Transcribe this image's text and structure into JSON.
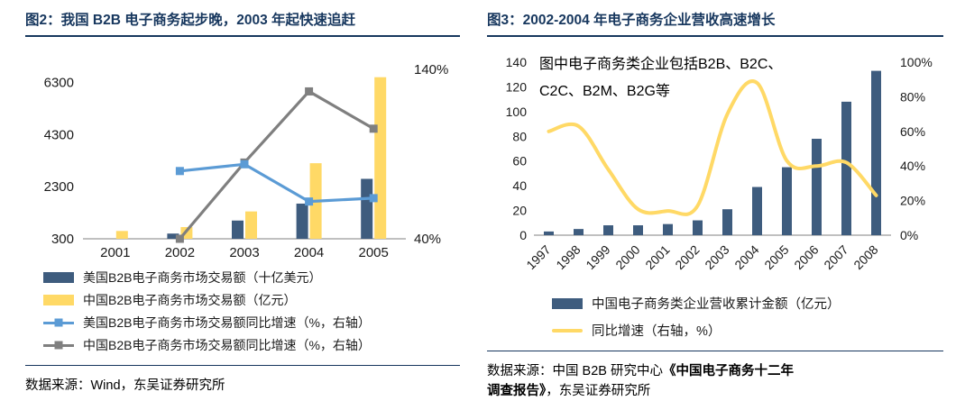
{
  "colors": {
    "title_navy": "#17375E",
    "bar_dark_blue": "#3E5C7E",
    "bar_yellow": "#FFD966",
    "line_blue": "#5B9BD5",
    "line_gray": "#7F7F7F",
    "line_yellow": "#FFD966",
    "axis_text": "#1a1a1a"
  },
  "fig2": {
    "title": "图2：我国 B2B 电子商务起步晚，2003 年起快速追赶",
    "source": "数据来源：Wind，东吴证券研究所"
  },
  "fig3": {
    "title": "图3：2002-2004 年电子商务企业营收高速增长",
    "annotation_line1": "图中电子商务类企业包括B2B、B2C、",
    "annotation_line2": "C2C、B2M、B2G等",
    "source_prefix": "数据来源：中国 B2B 研究中心",
    "source_book_part1": "《中国电子商务十二年",
    "source_book_part2": "调查报告》",
    "source_suffix": "，东吴证券研究所"
  },
  "chart_data": [
    {
      "type": "bar",
      "title": "图2：我国B2B电子商务起步晚，2003年起快速追赶",
      "categories": [
        "2001",
        "2002",
        "2003",
        "2004",
        "2005"
      ],
      "left_axis": {
        "min": 300,
        "max": 6800,
        "ticks": [
          300,
          2300,
          4300,
          6300
        ]
      },
      "right_axis": {
        "min": 40,
        "max": 140,
        "ticks": [
          {
            "value": 140,
            "label": "140%"
          },
          {
            "value": 40,
            "label": "40%"
          }
        ]
      },
      "grid": false,
      "legend_position": "bottom",
      "series": [
        {
          "name": "美国B2B电子商务市场交易额（十亿美元）",
          "type": "bar",
          "axis": "left",
          "color": "#3E5C7E",
          "values": [
            null,
            500,
            1000,
            1650,
            2600
          ]
        },
        {
          "name": "中国B2B电子商务市场交易额（亿元）",
          "type": "bar",
          "axis": "left",
          "color": "#FFD966",
          "values": [
            600,
            750,
            1350,
            3200,
            6500
          ]
        },
        {
          "name": "美国B2B电子商务市场交易额同比增速（%，右轴）",
          "type": "line",
          "axis": "right",
          "color": "#5B9BD5",
          "marker": "square",
          "values": [
            null,
            80,
            84,
            62,
            64
          ]
        },
        {
          "name": "中国B2B电子商务市场交易额同比增速（%，右轴）",
          "type": "line",
          "axis": "right",
          "color": "#7F7F7F",
          "marker": "square",
          "values": [
            null,
            40,
            85,
            127,
            105
          ]
        }
      ]
    },
    {
      "type": "bar",
      "title": "图3：2002-2004年电子商务企业营收高速增长",
      "annotation": "图中电子商务类企业包括B2B、B2C、C2C、B2M、B2G等",
      "categories": [
        "1997",
        "1998",
        "1999",
        "2000",
        "2001",
        "2002",
        "2003",
        "2004",
        "2005",
        "2006",
        "2007",
        "2008"
      ],
      "left_axis": {
        "min": 0,
        "max": 140,
        "ticks": [
          0,
          20,
          40,
          60,
          80,
          100,
          120,
          140
        ]
      },
      "right_axis": {
        "min": 0,
        "max": 100,
        "ticks": [
          {
            "value": 0,
            "label": "0%"
          },
          {
            "value": 20,
            "label": "20%"
          },
          {
            "value": 40,
            "label": "40%"
          },
          {
            "value": 60,
            "label": "60%"
          },
          {
            "value": 80,
            "label": "80%"
          },
          {
            "value": 100,
            "label": "100%"
          }
        ]
      },
      "grid": false,
      "legend_position": "bottom",
      "series": [
        {
          "name": "中国电子商务类企业营收累计金额（亿元）",
          "type": "bar",
          "axis": "left",
          "color": "#3E5C7E",
          "values": [
            3,
            5,
            8,
            8,
            9,
            12,
            21,
            39,
            55,
            78,
            108,
            133
          ]
        },
        {
          "name": "同比增速（右轴，%）",
          "type": "line",
          "axis": "right",
          "color": "#FFD966",
          "smooth": true,
          "values": [
            60,
            63,
            38,
            15,
            14,
            17,
            70,
            88,
            43,
            40,
            42,
            23
          ]
        }
      ]
    }
  ]
}
